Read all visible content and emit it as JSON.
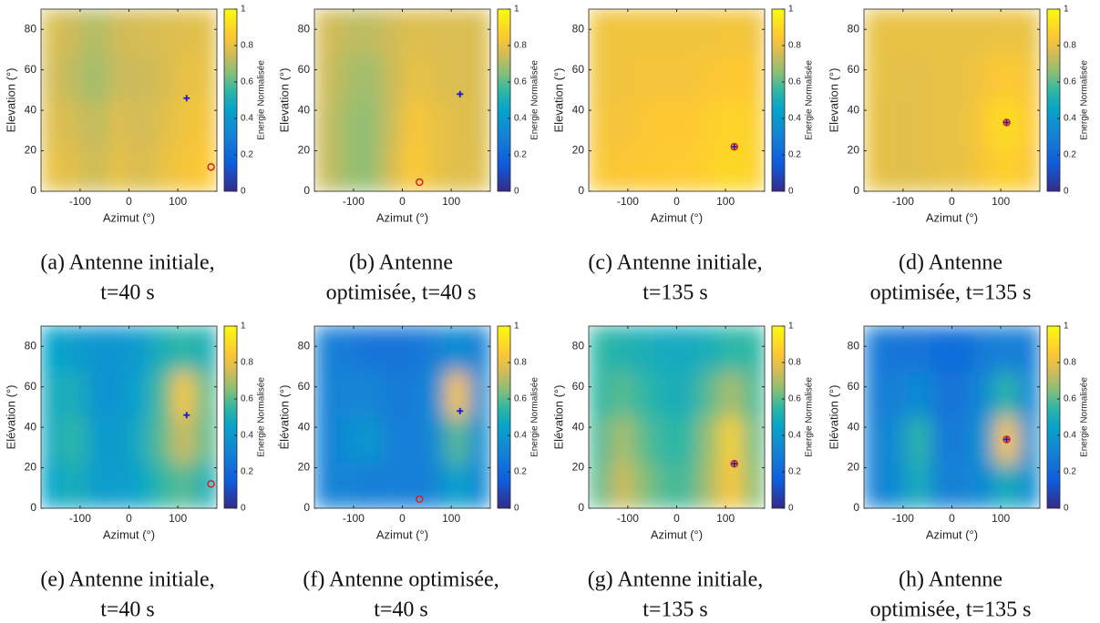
{
  "chart_data": [
    {
      "type": "heatmap",
      "xlabel": "Azimut (°)",
      "ylabel": "Elevation (°)",
      "xlim": [
        -180,
        180
      ],
      "xticks": [
        -100,
        0,
        100
      ],
      "ylim": [
        0,
        90
      ],
      "yticks": [
        0,
        20,
        40,
        60,
        80
      ],
      "clim": [
        0,
        1
      ],
      "cticks": [
        0,
        0.2,
        0.4,
        0.6,
        0.8,
        1
      ],
      "clabel": "Energie Normalisée",
      "z": [
        [
          0.8,
          0.78,
          0.74,
          0.8,
          0.76,
          0.8,
          0.83,
          0.85
        ],
        [
          0.78,
          0.76,
          0.72,
          0.78,
          0.75,
          0.78,
          0.82,
          0.83
        ],
        [
          0.76,
          0.72,
          0.68,
          0.74,
          0.74,
          0.76,
          0.8,
          0.8
        ],
        [
          0.77,
          0.74,
          0.7,
          0.75,
          0.76,
          0.77,
          0.78,
          0.79
        ]
      ],
      "markers": [
        {
          "x": 118,
          "y": 46,
          "marker": "+",
          "color": "#1a1ab8"
        },
        {
          "x": 168,
          "y": 12,
          "marker": "o",
          "color": "#d42020"
        }
      ],
      "caption": [
        "(a) Antenne initiale,",
        "t=40 s"
      ]
    },
    {
      "type": "heatmap",
      "xlabel": "Azimut (°)",
      "ylabel": "Elevation (°)",
      "xlim": [
        -180,
        180
      ],
      "xticks": [
        -100,
        0,
        100
      ],
      "ylim": [
        0,
        90
      ],
      "yticks": [
        0,
        20,
        40,
        60,
        80
      ],
      "clim": [
        0,
        1
      ],
      "cticks": [
        0,
        0.2,
        0.4,
        0.6,
        0.8,
        1
      ],
      "clabel": "Energie Normalisée",
      "z": [
        [
          0.74,
          0.68,
          0.66,
          0.76,
          0.86,
          0.8,
          0.78,
          0.78
        ],
        [
          0.74,
          0.68,
          0.66,
          0.74,
          0.84,
          0.8,
          0.78,
          0.77
        ],
        [
          0.75,
          0.7,
          0.68,
          0.74,
          0.8,
          0.78,
          0.77,
          0.77
        ],
        [
          0.76,
          0.73,
          0.72,
          0.75,
          0.78,
          0.77,
          0.77,
          0.77
        ]
      ],
      "markers": [
        {
          "x": 118,
          "y": 48,
          "marker": "+",
          "color": "#1a1ab8"
        },
        {
          "x": 35,
          "y": 4.5,
          "marker": "o",
          "color": "#d42020"
        }
      ],
      "caption": [
        "(b) Antenne",
        "optimisée, t=40 s"
      ]
    },
    {
      "type": "heatmap",
      "xlabel": "Azimut (°)",
      "ylabel": "Elevation (°)",
      "xlim": [
        -180,
        180
      ],
      "xticks": [
        -100,
        0,
        100
      ],
      "ylim": [
        0,
        90
      ],
      "yticks": [
        0,
        20,
        40,
        60,
        80
      ],
      "clim": [
        0,
        1
      ],
      "cticks": [
        0,
        0.2,
        0.4,
        0.6,
        0.8,
        1
      ],
      "clabel": "Energie Normalisée",
      "z": [
        [
          0.84,
          0.84,
          0.85,
          0.86,
          0.86,
          0.88,
          0.9,
          0.88
        ],
        [
          0.83,
          0.83,
          0.84,
          0.85,
          0.85,
          0.87,
          0.89,
          0.87
        ],
        [
          0.82,
          0.82,
          0.83,
          0.83,
          0.83,
          0.84,
          0.85,
          0.84
        ],
        [
          0.82,
          0.82,
          0.82,
          0.82,
          0.82,
          0.82,
          0.83,
          0.82
        ]
      ],
      "markers": [
        {
          "x": 118,
          "y": 22,
          "marker": "+",
          "color": "#1a1ab8"
        },
        {
          "x": 118,
          "y": 22,
          "marker": "o",
          "color": "#d42020"
        }
      ],
      "caption": [
        "(c) Antenne initiale,",
        "t=135 s"
      ]
    },
    {
      "type": "heatmap",
      "xlabel": "Azimut (°)",
      "ylabel": "Elevation (°)",
      "xlim": [
        -180,
        180
      ],
      "xticks": [
        -100,
        0,
        100
      ],
      "ylim": [
        0,
        90
      ],
      "yticks": [
        0,
        20,
        40,
        60,
        80
      ],
      "clim": [
        0,
        1
      ],
      "cticks": [
        0,
        0.2,
        0.4,
        0.6,
        0.8,
        1
      ],
      "clabel": "Energie Normalisée",
      "z": [
        [
          0.8,
          0.78,
          0.79,
          0.8,
          0.8,
          0.84,
          0.88,
          0.84
        ],
        [
          0.8,
          0.78,
          0.79,
          0.8,
          0.8,
          0.86,
          0.92,
          0.85
        ],
        [
          0.8,
          0.79,
          0.79,
          0.8,
          0.8,
          0.83,
          0.86,
          0.83
        ],
        [
          0.8,
          0.8,
          0.8,
          0.8,
          0.8,
          0.8,
          0.81,
          0.8
        ]
      ],
      "markers": [
        {
          "x": 112,
          "y": 34,
          "marker": "+",
          "color": "#1a1ab8"
        },
        {
          "x": 112,
          "y": 34,
          "marker": "o",
          "color": "#d42020"
        }
      ],
      "caption": [
        "(d) Antenne",
        "optimisée, t=135 s"
      ]
    },
    {
      "type": "heatmap",
      "xlabel": "Azimut (°)",
      "ylabel": "Elévation (°)",
      "xlim": [
        -180,
        180
      ],
      "xticks": [
        -100,
        0,
        100
      ],
      "ylim": [
        0,
        90
      ],
      "yticks": [
        0,
        20,
        40,
        60,
        80
      ],
      "clim": [
        0,
        1
      ],
      "cticks": [
        0,
        0.2,
        0.4,
        0.6,
        0.8,
        1
      ],
      "clabel": "Energie Normalisée",
      "z": [
        [
          0.45,
          0.5,
          0.42,
          0.42,
          0.45,
          0.55,
          0.6,
          0.5
        ],
        [
          0.48,
          0.55,
          0.42,
          0.4,
          0.48,
          0.6,
          0.75,
          0.6
        ],
        [
          0.48,
          0.5,
          0.38,
          0.38,
          0.45,
          0.58,
          0.85,
          0.6
        ],
        [
          0.45,
          0.42,
          0.38,
          0.38,
          0.42,
          0.5,
          0.55,
          0.5
        ]
      ],
      "markers": [
        {
          "x": 118,
          "y": 46,
          "marker": "+",
          "color": "#1a1ab8"
        },
        {
          "x": 168,
          "y": 12,
          "marker": "o",
          "color": "#d42020"
        }
      ],
      "caption": [
        "(e) Antenne initiale,",
        "t=40 s"
      ]
    },
    {
      "type": "heatmap",
      "xlabel": "Azimut (°)",
      "ylabel": "Élévation (°)",
      "xlim": [
        -180,
        180
      ],
      "xticks": [
        -100,
        0,
        100
      ],
      "ylim": [
        0,
        90
      ],
      "yticks": [
        0,
        20,
        40,
        60,
        80
      ],
      "clim": [
        0,
        1
      ],
      "cticks": [
        0,
        0.2,
        0.4,
        0.6,
        0.8,
        1
      ],
      "clabel": "Energie Normalisée",
      "z": [
        [
          0.3,
          0.32,
          0.28,
          0.3,
          0.28,
          0.32,
          0.45,
          0.32
        ],
        [
          0.3,
          0.35,
          0.4,
          0.3,
          0.28,
          0.35,
          0.6,
          0.35
        ],
        [
          0.3,
          0.32,
          0.32,
          0.28,
          0.28,
          0.35,
          0.85,
          0.35
        ],
        [
          0.3,
          0.28,
          0.25,
          0.25,
          0.25,
          0.3,
          0.35,
          0.3
        ]
      ],
      "markers": [
        {
          "x": 118,
          "y": 48,
          "marker": "+",
          "color": "#1a1ab8"
        },
        {
          "x": 35,
          "y": 4.5,
          "marker": "o",
          "color": "#d42020"
        }
      ],
      "caption": [
        "(f) Antenne optimisée,",
        "t=40 s"
      ]
    },
    {
      "type": "heatmap",
      "xlabel": "Azimut (°)",
      "ylabel": "Elévation (°)",
      "xlim": [
        -180,
        180
      ],
      "xticks": [
        -100,
        0,
        100
      ],
      "ylim": [
        0,
        90
      ],
      "yticks": [
        0,
        20,
        40,
        60,
        80
      ],
      "clim": [
        0,
        1
      ],
      "cticks": [
        0,
        0.2,
        0.4,
        0.6,
        0.8,
        1
      ],
      "clabel": "Energie Normalisée",
      "z": [
        [
          0.6,
          0.75,
          0.65,
          0.58,
          0.58,
          0.7,
          0.85,
          0.65
        ],
        [
          0.58,
          0.7,
          0.6,
          0.55,
          0.55,
          0.68,
          0.88,
          0.62
        ],
        [
          0.55,
          0.6,
          0.55,
          0.5,
          0.5,
          0.6,
          0.7,
          0.58
        ],
        [
          0.55,
          0.52,
          0.5,
          0.48,
          0.48,
          0.5,
          0.55,
          0.55
        ]
      ],
      "markers": [
        {
          "x": 118,
          "y": 22,
          "marker": "+",
          "color": "#1a1ab8"
        },
        {
          "x": 118,
          "y": 22,
          "marker": "o",
          "color": "#d42020"
        }
      ],
      "caption": [
        "(g) Antenne initiale,",
        "t=135 s"
      ]
    },
    {
      "type": "heatmap",
      "xlabel": "Azimut (°)",
      "ylabel": "Elévation (°)",
      "xlim": [
        -180,
        180
      ],
      "xticks": [
        -100,
        0,
        100
      ],
      "ylim": [
        0,
        90
      ],
      "yticks": [
        0,
        20,
        40,
        60,
        80
      ],
      "clim": [
        0,
        1
      ],
      "cticks": [
        0,
        0.2,
        0.4,
        0.6,
        0.8,
        1
      ],
      "clabel": "Energie Normalisée",
      "z": [
        [
          0.3,
          0.35,
          0.5,
          0.3,
          0.3,
          0.35,
          0.5,
          0.35
        ],
        [
          0.3,
          0.35,
          0.55,
          0.28,
          0.28,
          0.4,
          0.85,
          0.38
        ],
        [
          0.28,
          0.3,
          0.35,
          0.25,
          0.25,
          0.35,
          0.55,
          0.32
        ],
        [
          0.28,
          0.25,
          0.25,
          0.22,
          0.22,
          0.28,
          0.3,
          0.28
        ]
      ],
      "markers": [
        {
          "x": 112,
          "y": 34,
          "marker": "+",
          "color": "#1a1ab8"
        },
        {
          "x": 112,
          "y": 34,
          "marker": "o",
          "color": "#d42020"
        }
      ],
      "caption": [
        "(h) Antenne",
        "optimisée, t=135 s"
      ]
    }
  ]
}
